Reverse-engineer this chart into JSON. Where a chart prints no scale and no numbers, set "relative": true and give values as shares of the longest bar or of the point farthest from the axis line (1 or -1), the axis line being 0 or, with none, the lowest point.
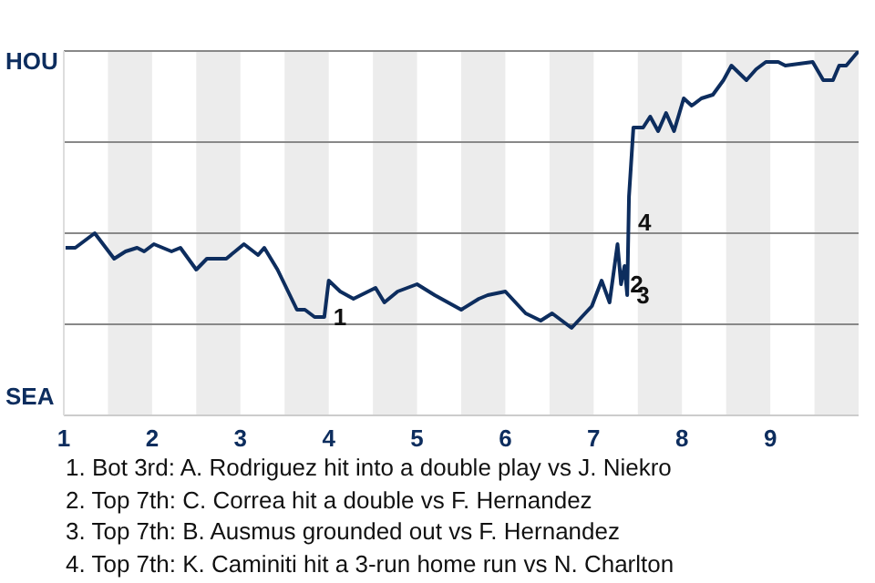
{
  "chart_data": {
    "type": "line",
    "color": "#0d2d5e",
    "relative": true,
    "x": [
      1.02,
      1.13,
      1.35,
      1.57,
      1.7,
      1.83,
      1.91,
      2.02,
      2.22,
      2.32,
      2.5,
      2.62,
      2.84,
      3.04,
      3.2,
      3.27,
      3.42,
      3.64,
      3.73,
      3.84,
      3.95,
      4.0,
      4.13,
      4.28,
      4.53,
      4.63,
      4.78,
      5.0,
      5.2,
      5.5,
      5.7,
      5.8,
      6.0,
      6.23,
      6.4,
      6.53,
      6.75,
      6.98,
      7.09,
      7.18,
      7.27,
      7.31,
      7.35,
      7.38,
      7.4,
      7.45,
      7.56,
      7.64,
      7.73,
      7.82,
      7.91,
      8.02,
      8.11,
      8.22,
      8.35,
      8.47,
      8.56,
      8.73,
      8.84,
      8.95,
      9.09,
      9.17,
      9.48,
      9.6,
      9.71,
      9.78,
      9.86,
      10
    ],
    "values": [
      0.46,
      0.46,
      0.5,
      0.43,
      0.45,
      0.46,
      0.45,
      0.47,
      0.45,
      0.46,
      0.4,
      0.43,
      0.43,
      0.47,
      0.44,
      0.46,
      0.4,
      0.29,
      0.29,
      0.27,
      0.27,
      0.37,
      0.34,
      0.32,
      0.35,
      0.31,
      0.34,
      0.36,
      0.33,
      0.29,
      0.32,
      0.33,
      0.34,
      0.28,
      0.26,
      0.28,
      0.24,
      0.3,
      0.37,
      0.31,
      0.47,
      0.36,
      0.41,
      0.33,
      0.6,
      0.79,
      0.79,
      0.82,
      0.78,
      0.83,
      0.78,
      0.87,
      0.85,
      0.87,
      0.88,
      0.92,
      0.96,
      0.92,
      0.95,
      0.97,
      0.97,
      0.96,
      0.97,
      0.92,
      0.92,
      0.96,
      0.96,
      1
    ],
    "xlim": [
      1,
      10
    ],
    "xticks": [
      1,
      2,
      3,
      4,
      5,
      6,
      7,
      8,
      9
    ],
    "grid": "y",
    "marker": "none",
    "line_style": "solid",
    "bands": [
      {
        "axis": "x",
        "from": 1.5,
        "to": 2,
        "label": null,
        "color": "#ececec"
      },
      {
        "axis": "x",
        "from": 2.5,
        "to": 3,
        "label": null,
        "color": "#ececec"
      },
      {
        "axis": "x",
        "from": 3.5,
        "to": 4,
        "label": null,
        "color": "#ececec"
      },
      {
        "axis": "x",
        "from": 4.5,
        "to": 5,
        "label": null,
        "color": "#ececec"
      },
      {
        "axis": "x",
        "from": 5.5,
        "to": 6,
        "label": null,
        "color": "#ececec"
      },
      {
        "axis": "x",
        "from": 6.5,
        "to": 7,
        "label": null,
        "color": "#ececec"
      },
      {
        "axis": "x",
        "from": 7.5,
        "to": 8,
        "label": null,
        "color": "#ececec"
      },
      {
        "axis": "x",
        "from": 8.5,
        "to": 9,
        "label": null,
        "color": "#ececec"
      },
      {
        "axis": "x",
        "from": 9.5,
        "to": 10,
        "label": null,
        "color": "#ececec"
      }
    ],
    "annotations": [
      "HOU",
      "SEA",
      {
        "text": "1",
        "x": 3.95,
        "y": 0.27
      },
      {
        "text": "2",
        "x": 7.31,
        "y": 0.36
      },
      {
        "text": "3",
        "x": 7.38,
        "y": 0.33
      },
      {
        "text": "4",
        "x": 7.4,
        "y": 0.53
      },
      "1. Bot 3rd: A. Rodriguez hit into a double play vs J. Niekro",
      "2. Top 7th: C. Correa hit a double vs F. Hernandez",
      "3. Top 7th: B. Ausmus grounded out vs F. Hernandez",
      "4. Top 7th: K. Caminiti hit a 3-run home run vs N. Charlton"
    ]
  }
}
